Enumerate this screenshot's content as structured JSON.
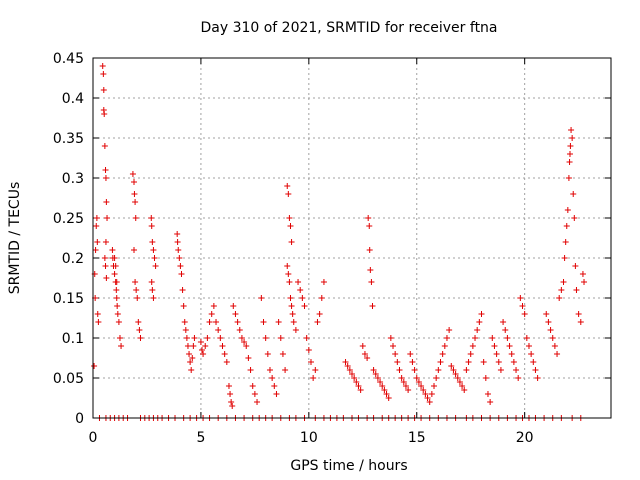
{
  "chart_data": {
    "type": "scatter",
    "title": "Day 310 of 2021, SRMTID for receiver ftna",
    "xlabel": "GPS time / hours",
    "ylabel": "SRMTID / TECUs",
    "xlim": [
      0,
      24
    ],
    "ylim": [
      0,
      0.45
    ],
    "xticks": [
      0,
      5,
      10,
      15,
      20
    ],
    "yticks": [
      0,
      0.05,
      0.1,
      0.15,
      0.2,
      0.25,
      0.3,
      0.35,
      0.4,
      0.45
    ],
    "ytick_labels": [
      "0",
      "0.05",
      "0.1",
      "0.15",
      "0.2",
      "0.25",
      "0.3",
      "0.35",
      "0.4",
      "0.45"
    ],
    "xtick_labels": [
      "0",
      "5",
      "10",
      "15",
      "20"
    ],
    "grid": true,
    "marker": "+",
    "color": "#e00000",
    "series": [
      {
        "points": [
          [
            0.05,
            0.065
          ],
          [
            0.08,
            0.18
          ],
          [
            0.1,
            0.15
          ],
          [
            0.12,
            0.21
          ],
          [
            0.15,
            0.24
          ],
          [
            0.18,
            0.25
          ],
          [
            0.2,
            0.22
          ],
          [
            0.22,
            0.13
          ],
          [
            0.25,
            0.12
          ],
          [
            0.45,
            0.44
          ],
          [
            0.48,
            0.43
          ],
          [
            0.5,
            0.41
          ],
          [
            0.5,
            0.385
          ],
          [
            0.52,
            0.38
          ],
          [
            0.55,
            0.34
          ],
          [
            0.58,
            0.31
          ],
          [
            0.6,
            0.3
          ],
          [
            0.62,
            0.27
          ],
          [
            0.65,
            0.25
          ],
          [
            0.6,
            0.22
          ],
          [
            0.55,
            0.2
          ],
          [
            0.58,
            0.19
          ],
          [
            0.62,
            0.175
          ],
          [
            0.9,
            0.21
          ],
          [
            0.92,
            0.2
          ],
          [
            0.95,
            0.19
          ],
          [
            1.0,
            0.18
          ],
          [
            1.05,
            0.17
          ],
          [
            1.08,
            0.16
          ],
          [
            1.1,
            0.15
          ],
          [
            1.12,
            0.14
          ],
          [
            1.15,
            0.13
          ],
          [
            1.2,
            0.12
          ],
          [
            1.25,
            0.1
          ],
          [
            1.3,
            0.09
          ],
          [
            1.0,
            0.2
          ],
          [
            1.05,
            0.19
          ],
          [
            1.1,
            0.17
          ],
          [
            1.85,
            0.305
          ],
          [
            1.9,
            0.295
          ],
          [
            1.92,
            0.28
          ],
          [
            1.95,
            0.27
          ],
          [
            1.98,
            0.25
          ],
          [
            1.9,
            0.21
          ],
          [
            1.95,
            0.17
          ],
          [
            2.0,
            0.16
          ],
          [
            2.05,
            0.15
          ],
          [
            2.1,
            0.12
          ],
          [
            2.15,
            0.11
          ],
          [
            2.2,
            0.1
          ],
          [
            2.7,
            0.25
          ],
          [
            2.72,
            0.24
          ],
          [
            2.75,
            0.22
          ],
          [
            2.8,
            0.21
          ],
          [
            2.85,
            0.2
          ],
          [
            2.9,
            0.19
          ],
          [
            2.72,
            0.17
          ],
          [
            2.75,
            0.16
          ],
          [
            2.8,
            0.15
          ],
          [
            3.9,
            0.23
          ],
          [
            3.92,
            0.22
          ],
          [
            3.95,
            0.21
          ],
          [
            4.0,
            0.2
          ],
          [
            4.05,
            0.19
          ],
          [
            4.1,
            0.18
          ],
          [
            4.15,
            0.16
          ],
          [
            4.2,
            0.14
          ],
          [
            4.25,
            0.12
          ],
          [
            4.3,
            0.11
          ],
          [
            4.35,
            0.1
          ],
          [
            4.4,
            0.09
          ],
          [
            4.45,
            0.08
          ],
          [
            4.5,
            0.07
          ],
          [
            4.55,
            0.06
          ],
          [
            4.6,
            0.075
          ],
          [
            4.65,
            0.09
          ],
          [
            4.7,
            0.1
          ],
          [
            5.0,
            0.095
          ],
          [
            5.05,
            0.085
          ],
          [
            5.1,
            0.08
          ],
          [
            5.2,
            0.09
          ],
          [
            5.3,
            0.1
          ],
          [
            5.4,
            0.12
          ],
          [
            5.5,
            0.13
          ],
          [
            5.6,
            0.14
          ],
          [
            5.7,
            0.12
          ],
          [
            5.8,
            0.11
          ],
          [
            5.9,
            0.1
          ],
          [
            6.0,
            0.09
          ],
          [
            6.1,
            0.08
          ],
          [
            6.2,
            0.07
          ],
          [
            6.3,
            0.04
          ],
          [
            6.35,
            0.03
          ],
          [
            6.4,
            0.02
          ],
          [
            6.45,
            0.015
          ],
          [
            6.5,
            0.14
          ],
          [
            6.6,
            0.13
          ],
          [
            6.7,
            0.12
          ],
          [
            6.8,
            0.11
          ],
          [
            6.9,
            0.1
          ],
          [
            7.0,
            0.095
          ],
          [
            7.1,
            0.09
          ],
          [
            7.2,
            0.075
          ],
          [
            7.3,
            0.06
          ],
          [
            7.4,
            0.04
          ],
          [
            7.5,
            0.03
          ],
          [
            7.6,
            0.02
          ],
          [
            7.8,
            0.15
          ],
          [
            7.9,
            0.12
          ],
          [
            8.0,
            0.1
          ],
          [
            8.1,
            0.08
          ],
          [
            8.2,
            0.06
          ],
          [
            8.3,
            0.05
          ],
          [
            8.4,
            0.04
          ],
          [
            8.5,
            0.03
          ],
          [
            8.6,
            0.12
          ],
          [
            8.7,
            0.1
          ],
          [
            8.8,
            0.08
          ],
          [
            8.9,
            0.06
          ],
          [
            9.0,
            0.29
          ],
          [
            9.05,
            0.28
          ],
          [
            9.1,
            0.25
          ],
          [
            9.15,
            0.24
          ],
          [
            9.2,
            0.22
          ],
          [
            9.0,
            0.19
          ],
          [
            9.05,
            0.18
          ],
          [
            9.1,
            0.17
          ],
          [
            9.15,
            0.15
          ],
          [
            9.2,
            0.14
          ],
          [
            9.25,
            0.13
          ],
          [
            9.3,
            0.12
          ],
          [
            9.4,
            0.11
          ],
          [
            9.5,
            0.17
          ],
          [
            9.6,
            0.16
          ],
          [
            9.7,
            0.15
          ],
          [
            9.8,
            0.14
          ],
          [
            9.9,
            0.1
          ],
          [
            10.0,
            0.085
          ],
          [
            10.1,
            0.07
          ],
          [
            10.2,
            0.05
          ],
          [
            10.3,
            0.06
          ],
          [
            10.4,
            0.12
          ],
          [
            10.5,
            0.13
          ],
          [
            10.6,
            0.15
          ],
          [
            10.7,
            0.17
          ],
          [
            11.7,
            0.07
          ],
          [
            11.8,
            0.065
          ],
          [
            11.9,
            0.06
          ],
          [
            12.0,
            0.055
          ],
          [
            12.1,
            0.05
          ],
          [
            12.2,
            0.045
          ],
          [
            12.3,
            0.04
          ],
          [
            12.4,
            0.035
          ],
          [
            12.5,
            0.09
          ],
          [
            12.6,
            0.08
          ],
          [
            12.7,
            0.075
          ],
          [
            12.75,
            0.25
          ],
          [
            12.8,
            0.24
          ],
          [
            12.82,
            0.21
          ],
          [
            12.85,
            0.185
          ],
          [
            12.9,
            0.17
          ],
          [
            12.95,
            0.14
          ],
          [
            13.0,
            0.06
          ],
          [
            13.1,
            0.055
          ],
          [
            13.2,
            0.05
          ],
          [
            13.3,
            0.045
          ],
          [
            13.4,
            0.04
          ],
          [
            13.5,
            0.035
          ],
          [
            13.6,
            0.03
          ],
          [
            13.7,
            0.025
          ],
          [
            13.8,
            0.1
          ],
          [
            13.9,
            0.09
          ],
          [
            14.0,
            0.08
          ],
          [
            14.1,
            0.07
          ],
          [
            14.2,
            0.06
          ],
          [
            14.3,
            0.05
          ],
          [
            14.4,
            0.045
          ],
          [
            14.5,
            0.04
          ],
          [
            14.6,
            0.035
          ],
          [
            14.7,
            0.08
          ],
          [
            14.8,
            0.07
          ],
          [
            14.9,
            0.06
          ],
          [
            15.0,
            0.05
          ],
          [
            15.1,
            0.045
          ],
          [
            15.2,
            0.04
          ],
          [
            15.3,
            0.035
          ],
          [
            15.4,
            0.03
          ],
          [
            15.5,
            0.025
          ],
          [
            15.6,
            0.02
          ],
          [
            15.7,
            0.03
          ],
          [
            15.8,
            0.04
          ],
          [
            15.9,
            0.05
          ],
          [
            16.0,
            0.06
          ],
          [
            16.1,
            0.07
          ],
          [
            16.2,
            0.08
          ],
          [
            16.3,
            0.09
          ],
          [
            16.4,
            0.1
          ],
          [
            16.5,
            0.11
          ],
          [
            16.6,
            0.065
          ],
          [
            16.7,
            0.06
          ],
          [
            16.8,
            0.055
          ],
          [
            16.9,
            0.05
          ],
          [
            17.0,
            0.045
          ],
          [
            17.1,
            0.04
          ],
          [
            17.2,
            0.035
          ],
          [
            17.3,
            0.06
          ],
          [
            17.4,
            0.07
          ],
          [
            17.5,
            0.08
          ],
          [
            17.6,
            0.09
          ],
          [
            17.7,
            0.1
          ],
          [
            17.8,
            0.11
          ],
          [
            17.9,
            0.12
          ],
          [
            18.0,
            0.13
          ],
          [
            18.1,
            0.07
          ],
          [
            18.2,
            0.05
          ],
          [
            18.3,
            0.03
          ],
          [
            18.4,
            0.02
          ],
          [
            18.5,
            0.1
          ],
          [
            18.6,
            0.09
          ],
          [
            18.7,
            0.08
          ],
          [
            18.8,
            0.07
          ],
          [
            18.9,
            0.06
          ],
          [
            19.0,
            0.12
          ],
          [
            19.1,
            0.11
          ],
          [
            19.2,
            0.1
          ],
          [
            19.3,
            0.09
          ],
          [
            19.4,
            0.08
          ],
          [
            19.5,
            0.07
          ],
          [
            19.6,
            0.06
          ],
          [
            19.7,
            0.05
          ],
          [
            19.8,
            0.15
          ],
          [
            19.9,
            0.14
          ],
          [
            20.0,
            0.13
          ],
          [
            20.1,
            0.1
          ],
          [
            20.2,
            0.09
          ],
          [
            20.3,
            0.08
          ],
          [
            20.4,
            0.07
          ],
          [
            20.5,
            0.06
          ],
          [
            20.6,
            0.05
          ],
          [
            21.0,
            0.13
          ],
          [
            21.1,
            0.12
          ],
          [
            21.2,
            0.11
          ],
          [
            21.3,
            0.1
          ],
          [
            21.4,
            0.09
          ],
          [
            21.5,
            0.08
          ],
          [
            21.6,
            0.15
          ],
          [
            21.7,
            0.16
          ],
          [
            21.8,
            0.17
          ],
          [
            21.85,
            0.2
          ],
          [
            21.9,
            0.22
          ],
          [
            21.95,
            0.24
          ],
          [
            22.0,
            0.26
          ],
          [
            22.05,
            0.3
          ],
          [
            22.08,
            0.32
          ],
          [
            22.1,
            0.33
          ],
          [
            22.12,
            0.34
          ],
          [
            22.15,
            0.36
          ],
          [
            22.2,
            0.35
          ],
          [
            22.25,
            0.28
          ],
          [
            22.3,
            0.25
          ],
          [
            22.35,
            0.19
          ],
          [
            22.4,
            0.16
          ],
          [
            22.5,
            0.13
          ],
          [
            22.6,
            0.12
          ],
          [
            22.7,
            0.18
          ],
          [
            22.75,
            0.17
          ]
        ],
        "zeros": [
          0.3,
          0.6,
          0.8,
          1.0,
          1.2,
          1.4,
          1.6,
          2.2,
          2.4,
          2.6,
          2.8,
          3.0,
          3.2,
          3.5,
          3.8,
          4.2,
          4.5,
          4.8,
          5.1,
          5.4,
          5.8,
          6.2,
          6.6,
          7.0,
          7.4,
          7.7,
          8.0,
          8.3,
          8.7,
          9.1,
          9.4,
          9.8,
          10.3,
          10.7,
          11.0,
          11.3,
          11.6,
          12.0,
          12.3,
          12.7,
          13.0,
          13.4,
          13.7,
          14.0,
          14.3,
          14.6,
          14.9,
          15.2,
          15.6,
          16.0,
          16.4,
          16.8,
          17.3,
          17.6,
          18.0,
          18.4,
          18.8,
          19.2,
          19.6,
          19.9,
          20.2,
          20.5,
          20.9,
          21.3,
          21.7,
          22.2,
          22.6
        ]
      }
    ]
  }
}
